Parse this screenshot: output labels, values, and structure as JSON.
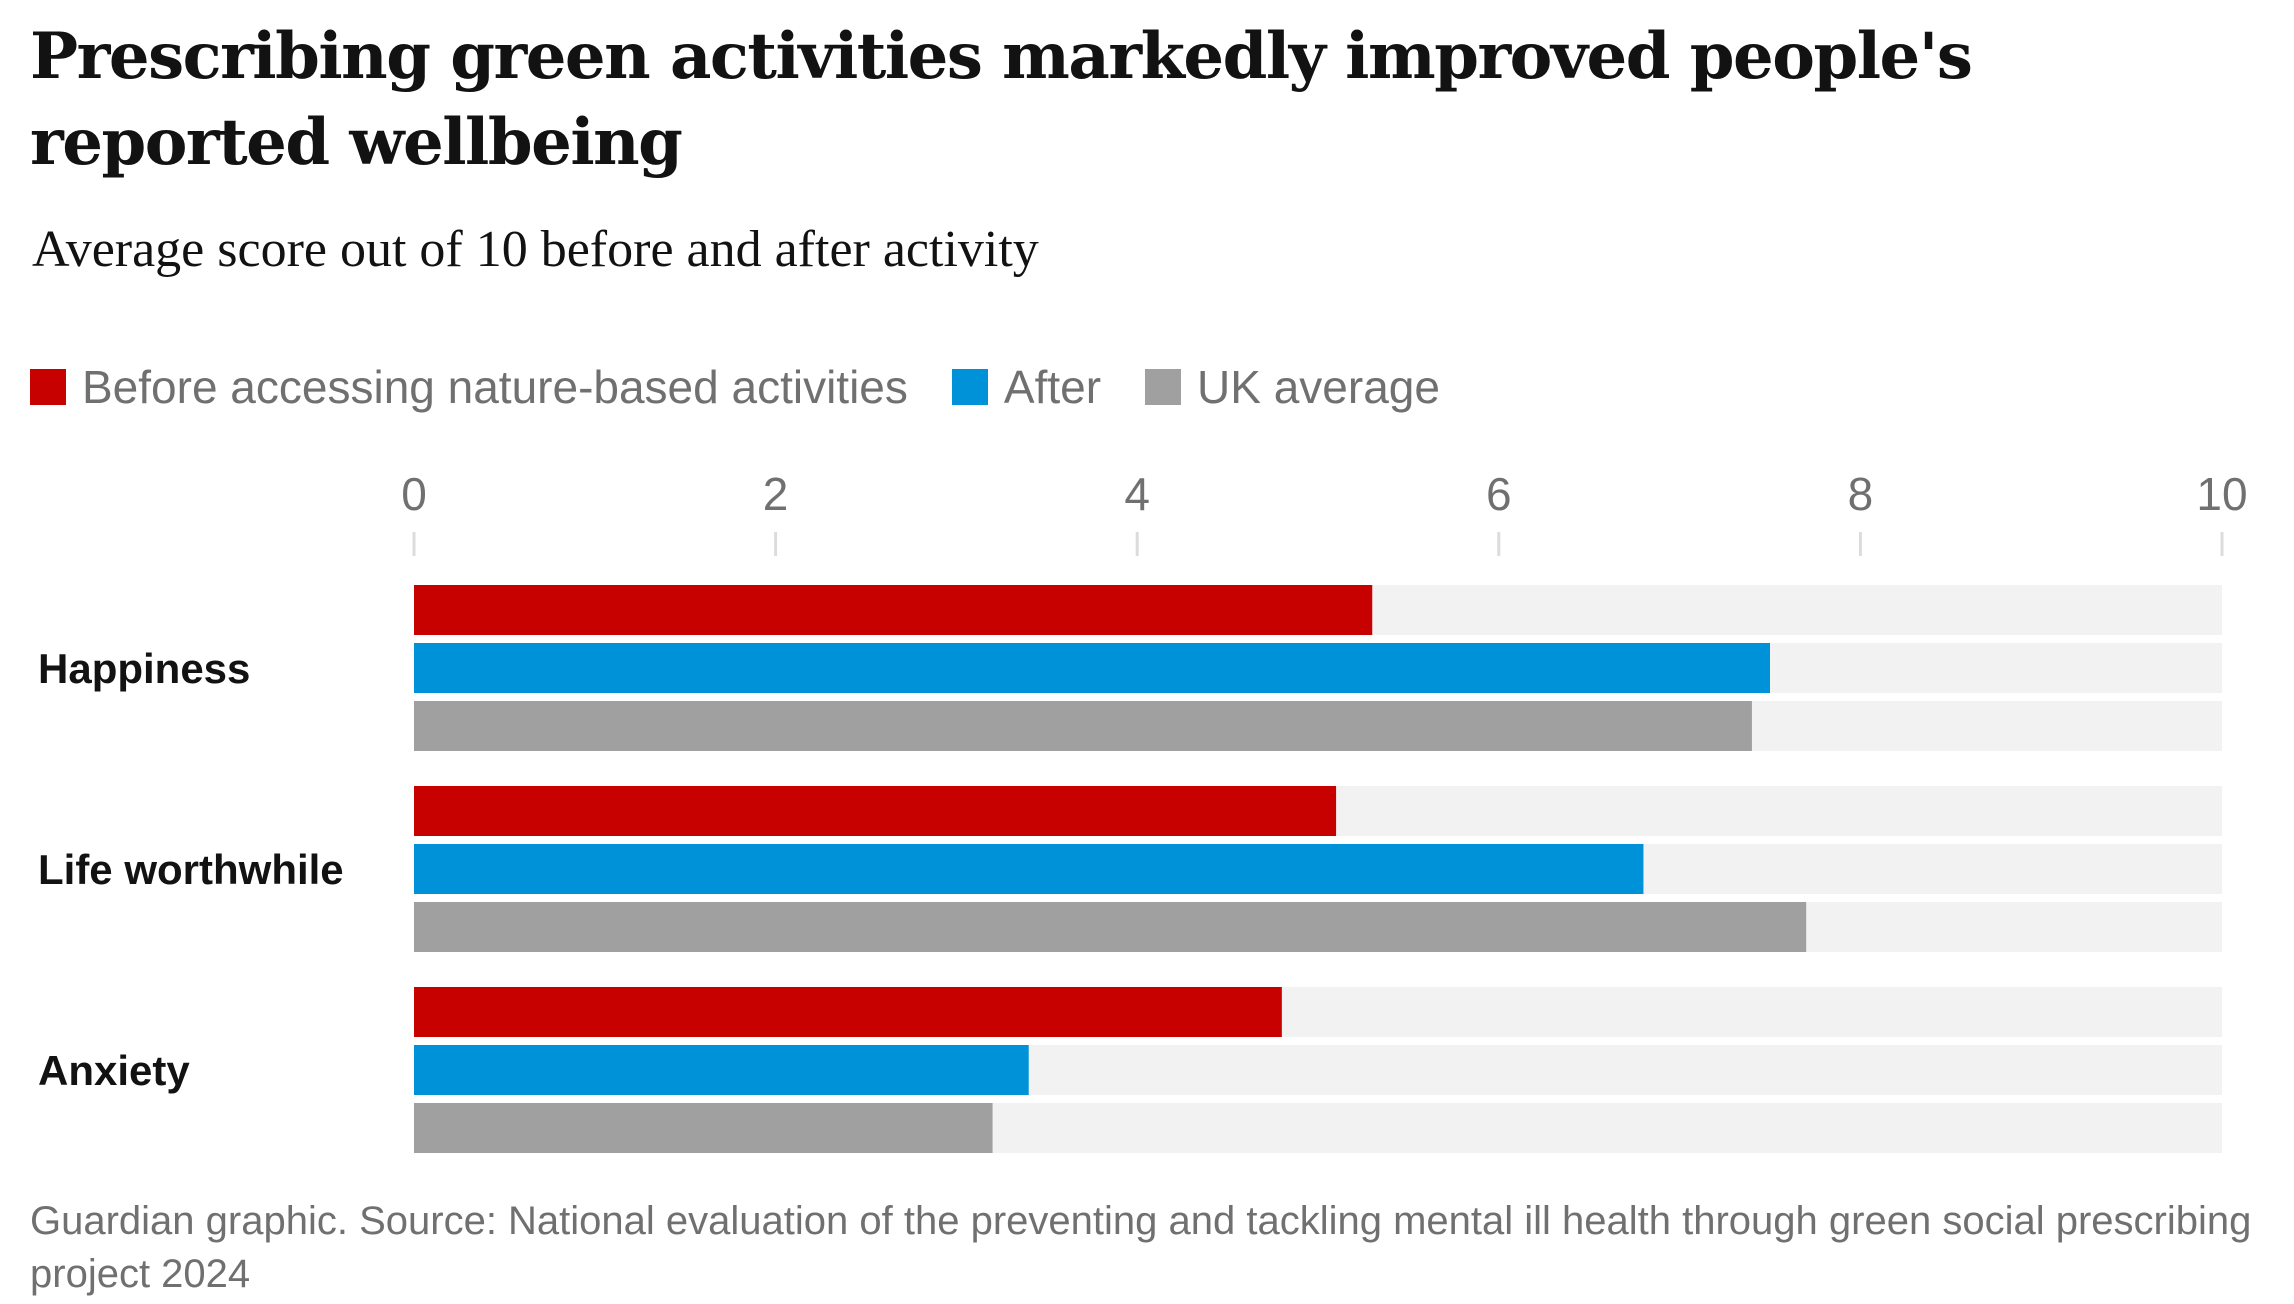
{
  "title": "Prescribing green activities markedly improved people's reported wellbeing",
  "subtitle": "Average score out of 10 before and after activity",
  "footer": "Guardian graphic. Source: National evaluation of the preventing and tackling mental ill health through green social prescribing project 2024",
  "colors": {
    "before": "#c70000",
    "after": "#0092d8",
    "uk": "#a0a0a0",
    "track": "#f2f2f2",
    "tick": "#dcdcdc"
  },
  "chart_data": {
    "type": "bar",
    "orientation": "horizontal",
    "title": "Prescribing green activities markedly improved people's reported wellbeing",
    "subtitle": "Average score out of 10 before and after activity",
    "categories": [
      "Happiness",
      "Life worthwhile",
      "Anxiety"
    ],
    "series": [
      {
        "name": "Before accessing nature-based activities",
        "color": "#c70000",
        "values": [
          5.3,
          5.1,
          4.8
        ]
      },
      {
        "name": "After",
        "color": "#0092d8",
        "values": [
          7.5,
          6.8,
          3.4
        ]
      },
      {
        "name": "UK average",
        "color": "#a0a0a0",
        "values": [
          7.4,
          7.7,
          3.2
        ]
      }
    ],
    "xlim": [
      0,
      10
    ],
    "xticks": [
      "0",
      "2",
      "4",
      "6",
      "8",
      "10"
    ],
    "xlabel": "",
    "ylabel": "",
    "legend_position": "top-left",
    "grid": false
  }
}
